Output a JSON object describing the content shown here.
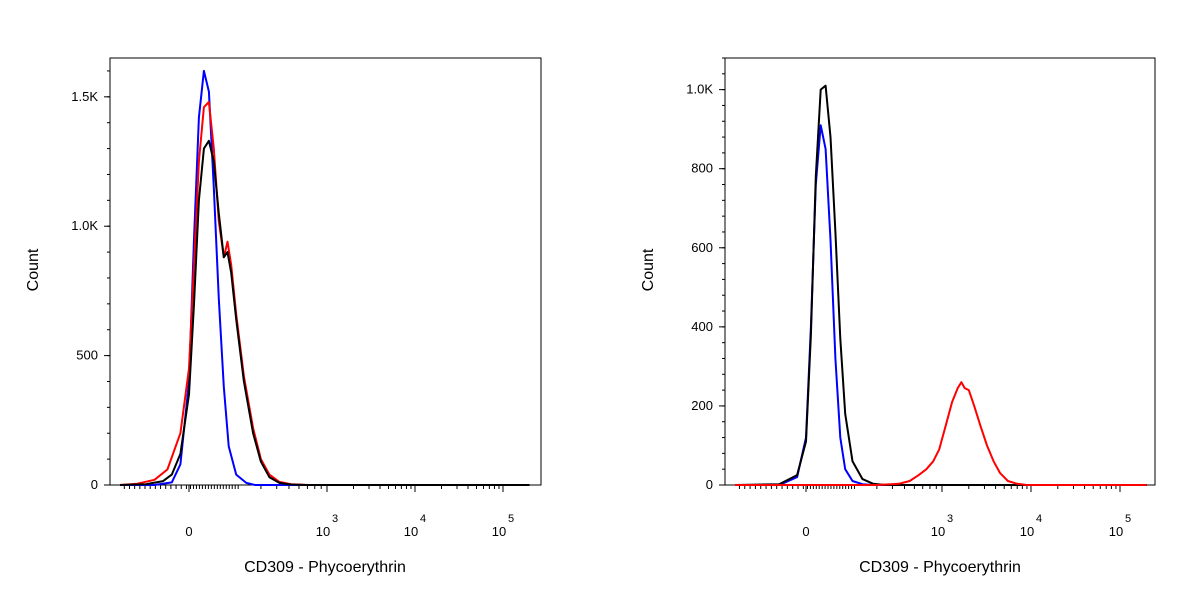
{
  "chart_data": [
    {
      "type": "line",
      "xlabel": "CD309 - Phycoerythrin",
      "ylabel": "Count",
      "x_scale": "biexponential",
      "x_ticks": [
        {
          "value": 0,
          "base": "0",
          "exp": ""
        },
        {
          "value": 1000,
          "base": "10",
          "exp": "3"
        },
        {
          "value": 10000,
          "base": "10",
          "exp": "4"
        },
        {
          "value": 100000,
          "base": "10",
          "exp": "5"
        }
      ],
      "y_ticks": [
        {
          "value": 0,
          "label": "0"
        },
        {
          "value": 500,
          "label": "500"
        },
        {
          "value": 1000,
          "label": "1.0K"
        },
        {
          "value": 1500,
          "label": "1.5K"
        }
      ],
      "ylim": [
        0,
        1650
      ],
      "xlim": [
        -160,
        200000
      ],
      "series": [
        {
          "color": "#0000ff",
          "x": [
            -160,
            -80,
            -40,
            -20,
            0,
            20,
            40,
            60,
            80,
            100,
            120,
            140,
            160,
            190,
            230,
            270,
            320,
            400,
            600,
            200000
          ],
          "y": [
            0,
            0,
            10,
            80,
            400,
            950,
            1420,
            1600,
            1520,
            1150,
            720,
            380,
            150,
            40,
            8,
            0,
            0,
            0,
            0,
            0
          ]
        },
        {
          "color": "#ff0000",
          "x": [
            -160,
            -120,
            -80,
            -50,
            -20,
            0,
            20,
            40,
            60,
            80,
            100,
            120,
            140,
            155,
            170,
            190,
            220,
            260,
            300,
            350,
            420,
            520,
            700,
            200000
          ],
          "y": [
            0,
            5,
            20,
            60,
            200,
            450,
            850,
            1250,
            1460,
            1480,
            1300,
            1020,
            880,
            940,
            850,
            660,
            420,
            220,
            100,
            40,
            12,
            3,
            0,
            0
          ]
        },
        {
          "color": "#000000",
          "x": [
            -160,
            -100,
            -60,
            -40,
            -20,
            0,
            20,
            40,
            60,
            80,
            100,
            120,
            140,
            155,
            170,
            190,
            220,
            260,
            300,
            350,
            420,
            520,
            700,
            200000
          ],
          "y": [
            0,
            3,
            15,
            40,
            120,
            350,
            700,
            1100,
            1300,
            1330,
            1250,
            1050,
            880,
            900,
            820,
            640,
            400,
            200,
            90,
            30,
            8,
            2,
            0,
            0
          ]
        }
      ]
    },
    {
      "type": "line",
      "xlabel": "CD309 - Phycoerythrin",
      "ylabel": "Count",
      "x_scale": "biexponential",
      "x_ticks": [
        {
          "value": 0,
          "base": "0",
          "exp": ""
        },
        {
          "value": 1000,
          "base": "10",
          "exp": "3"
        },
        {
          "value": 10000,
          "base": "10",
          "exp": "4"
        },
        {
          "value": 100000,
          "base": "10",
          "exp": "5"
        }
      ],
      "y_ticks": [
        {
          "value": 0,
          "label": "0"
        },
        {
          "value": 200,
          "label": "200"
        },
        {
          "value": 400,
          "label": "400"
        },
        {
          "value": 600,
          "label": "600"
        },
        {
          "value": 800,
          "label": "800"
        },
        {
          "value": 1000,
          "label": "1.0K"
        }
      ],
      "ylim": [
        0,
        1080
      ],
      "xlim": [
        -160,
        200000
      ],
      "series": [
        {
          "color": "#0000ff",
          "x": [
            -160,
            -60,
            -20,
            0,
            20,
            40,
            60,
            80,
            100,
            120,
            140,
            160,
            190,
            230,
            280,
            350,
            200000
          ],
          "y": [
            0,
            0,
            20,
            120,
            400,
            760,
            910,
            850,
            620,
            320,
            120,
            40,
            10,
            2,
            0,
            0,
            0
          ]
        },
        {
          "color": "#000000",
          "x": [
            -160,
            -60,
            -20,
            0,
            20,
            40,
            60,
            80,
            100,
            120,
            140,
            160,
            190,
            230,
            280,
            350,
            450,
            200000
          ],
          "y": [
            0,
            2,
            25,
            110,
            380,
            780,
            1000,
            1010,
            880,
            640,
            370,
            180,
            60,
            15,
            3,
            0,
            0,
            0
          ]
        },
        {
          "color": "#ff0000",
          "x": [
            -160,
            300,
            450,
            550,
            650,
            750,
            850,
            950,
            1100,
            1300,
            1500,
            1650,
            1800,
            2000,
            2300,
            2700,
            3200,
            3800,
            4500,
            5500,
            7000,
            9000,
            200000
          ],
          "y": [
            0,
            0,
            3,
            10,
            25,
            40,
            60,
            90,
            150,
            210,
            245,
            260,
            245,
            240,
            200,
            150,
            100,
            60,
            30,
            10,
            3,
            0,
            0
          ]
        }
      ]
    }
  ]
}
